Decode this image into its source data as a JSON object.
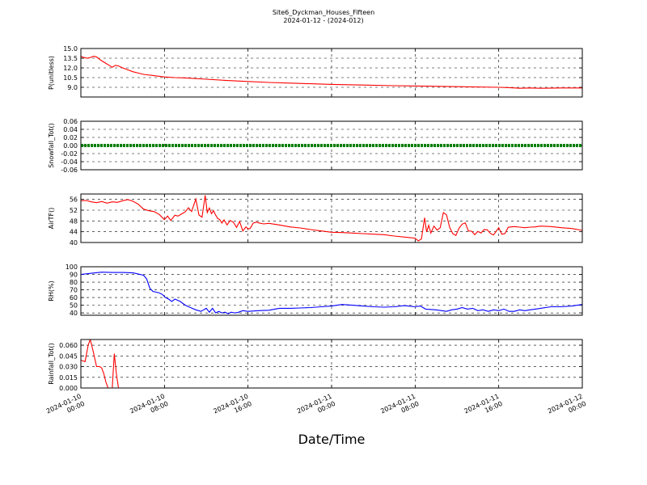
{
  "figure": {
    "title": "Site6_Dyckman_Houses_Fifteen",
    "subtitle": "2024-01-12 - (2024-012)",
    "xlabel": "Date/Time"
  },
  "chart_data": {
    "type": "line",
    "shared_x": {
      "range": [
        "2024-01-10 00:00",
        "2024-01-12 00:00"
      ],
      "tick_labels": [
        "2024-01-10\n00:00",
        "2024-01-10\n08:00",
        "2024-01-10\n16:00",
        "2024-01-11\n00:00",
        "2024-01-11\n08:00",
        "2024-01-11\n16:00",
        "2024-01-12\n00:00"
      ],
      "tick_hours": [
        0,
        8,
        16,
        24,
        32,
        40,
        48
      ]
    },
    "panels": [
      {
        "ylabel": "P(unitless)",
        "ylim": [
          7.5,
          15.0
        ],
        "yticks": [
          9.0,
          10.5,
          12.0,
          13.5,
          15.0
        ],
        "color": "#ff0000",
        "grid": true,
        "series": {
          "x_hours": [
            0,
            0.3,
            0.6,
            0.9,
            1.2,
            1.5,
            1.8,
            2.1,
            2.4,
            2.7,
            3.0,
            3.3,
            3.6,
            4.0,
            4.5,
            5.0,
            5.5,
            6,
            7,
            8,
            9,
            10,
            12,
            14,
            16,
            18,
            20,
            22,
            24,
            27,
            30,
            33,
            36,
            40,
            41,
            42,
            43,
            44,
            46,
            48
          ],
          "y": [
            13.8,
            13.6,
            13.5,
            13.6,
            13.8,
            13.7,
            13.3,
            13.0,
            12.7,
            12.4,
            12.1,
            12.4,
            12.3,
            12.0,
            11.7,
            11.4,
            11.2,
            11.0,
            10.8,
            10.6,
            10.5,
            10.45,
            10.25,
            10.05,
            9.9,
            9.75,
            9.65,
            9.55,
            9.45,
            9.35,
            9.25,
            9.18,
            9.1,
            9.0,
            8.95,
            8.85,
            8.9,
            8.85,
            8.9,
            8.9
          ]
        }
      },
      {
        "ylabel": "Snowfall_Tot()",
        "ylim": [
          -0.06,
          0.06
        ],
        "yticks": [
          -0.06,
          -0.04,
          -0.02,
          0.0,
          0.02,
          0.04,
          0.06
        ],
        "color": "#008000",
        "grid": true,
        "series": {
          "x_hours": [
            0,
            48
          ],
          "y": [
            0,
            0
          ]
        }
      },
      {
        "ylabel": "AirTF()",
        "ylim": [
          40,
          58
        ],
        "yticks": [
          40,
          44,
          48,
          52,
          56
        ],
        "color": "#ff0000",
        "grid": true,
        "series": {
          "x_hours": [
            0,
            0.5,
            1.0,
            1.5,
            2.0,
            2.5,
            3.0,
            3.5,
            4.0,
            4.5,
            5.0,
            5.5,
            6.0,
            6.5,
            7.0,
            7.5,
            8.0,
            8.3,
            8.6,
            9.0,
            9.3,
            9.6,
            10.0,
            10.3,
            10.6,
            11.0,
            11.3,
            11.6,
            11.9,
            12.1,
            12.3,
            12.5,
            12.7,
            12.9,
            13.1,
            13.3,
            13.5,
            13.7,
            14.0,
            14.3,
            14.6,
            14.9,
            15.2,
            15.5,
            15.8,
            16.0,
            16.2,
            16.5,
            16.8,
            17.0,
            17.5,
            18.0,
            19.0,
            20,
            21,
            22,
            23,
            24,
            25,
            26,
            27,
            28,
            29,
            30,
            31,
            32,
            32.3,
            32.6,
            32.9,
            33.1,
            33.3,
            33.5,
            33.8,
            34.1,
            34.4,
            34.7,
            35.0,
            35.3,
            35.6,
            35.9,
            36.2,
            36.5,
            36.8,
            37.1,
            37.4,
            37.7,
            38.0,
            38.3,
            38.6,
            38.9,
            39.2,
            39.5,
            40.0,
            40.3,
            40.6,
            40.9,
            41.2,
            41.5,
            42,
            42.5,
            43,
            43.5,
            44,
            45,
            46,
            47,
            48
          ],
          "y": [
            55.5,
            55.6,
            55.1,
            54.8,
            55.2,
            54.6,
            55.1,
            54.9,
            55.5,
            55.9,
            55.3,
            54.2,
            52.4,
            51.8,
            51.5,
            50.4,
            48.5,
            49.8,
            48.2,
            50.1,
            49.8,
            50.5,
            51.4,
            52.9,
            51.5,
            56.1,
            50.2,
            49.4,
            57.5,
            51.1,
            52.8,
            50.7,
            51.8,
            50.2,
            48.9,
            48.5,
            47.2,
            48.4,
            46.5,
            48.2,
            47.5,
            45.6,
            47.8,
            44.3,
            45.8,
            45.1,
            45.2,
            47.2,
            47.6,
            47.3,
            46.9,
            47.1,
            46.5,
            45.8,
            45.4,
            44.8,
            44.3,
            43.8,
            43.7,
            43.5,
            43.3,
            43.1,
            42.9,
            42.4,
            42.0,
            41.6,
            40.6,
            41.3,
            49.2,
            43.9,
            46.4,
            43.5,
            46.1,
            44.6,
            45.5,
            51.1,
            50.3,
            45.6,
            43.3,
            42.6,
            45.3,
            46.8,
            47.3,
            44.3,
            44.2,
            42.9,
            44.1,
            43.5,
            44.8,
            44.7,
            43.4,
            42.8,
            45.5,
            43.1,
            43.3,
            45.6,
            45.8,
            45.9,
            45.7,
            45.5,
            45.7,
            45.8,
            46.1,
            45.9,
            45.5,
            45.2,
            44.5
          ]
        }
      },
      {
        "ylabel": "RH(%)",
        "ylim": [
          37,
          100
        ],
        "yticks": [
          40,
          50,
          60,
          70,
          80,
          90,
          100
        ],
        "color": "#0000ff",
        "grid": true,
        "series": {
          "x_hours": [
            0,
            1,
            2,
            3,
            4,
            5,
            6,
            6.3,
            6.6,
            6.9,
            7.2,
            7.5,
            7.8,
            8.1,
            8.4,
            8.7,
            9.0,
            9.5,
            10,
            10.5,
            11,
            11.5,
            12.0,
            12.3,
            12.6,
            12.9,
            13.2,
            13.5,
            13.8,
            14.1,
            14.4,
            14.7,
            15.0,
            15.5,
            16,
            17,
            18,
            19,
            20,
            21,
            22,
            23,
            24,
            25,
            26,
            27,
            28,
            29,
            30,
            31,
            32,
            32.5,
            33,
            34,
            35,
            35.5,
            36,
            36.5,
            37,
            37.5,
            38,
            38.5,
            39,
            39.5,
            40,
            40.5,
            41,
            41.5,
            42,
            42.5,
            43,
            43.5,
            44,
            45,
            46,
            47,
            48
          ],
          "y": [
            90,
            91.5,
            93,
            92.5,
            92.5,
            92,
            89,
            84,
            72,
            68,
            67,
            66,
            64,
            60,
            58,
            55,
            58,
            55,
            50,
            47,
            44,
            42,
            46,
            41,
            46,
            40,
            42,
            40,
            41,
            39,
            41,
            40,
            40.5,
            43,
            42,
            43,
            43.5,
            46,
            46,
            46.5,
            47,
            48,
            49,
            51,
            50,
            49,
            48,
            47.5,
            48,
            49.5,
            48,
            49,
            45,
            44,
            42,
            44,
            45,
            47,
            45,
            46,
            43,
            44,
            42,
            44,
            43,
            45,
            42,
            42,
            44,
            43,
            44,
            45,
            46,
            48,
            48,
            49,
            51
          ]
        }
      },
      {
        "ylabel": "Rainfall_Tot()",
        "ylim": [
          0,
          0.068
        ],
        "yticks": [
          0.0,
          0.015,
          0.03,
          0.045,
          0.06
        ],
        "color": "#ff0000",
        "grid": true,
        "series": {
          "x_hours": [
            0,
            0.4,
            0.7,
            0.9,
            1.2,
            1.5,
            1.8,
            2.0,
            2.2,
            2.4,
            2.6,
            2.8,
            3.0,
            3.2,
            3.4,
            3.6,
            4,
            8,
            16,
            24,
            32,
            40,
            48
          ],
          "y": [
            0.039,
            0.037,
            0.06,
            0.068,
            0.05,
            0.03,
            0.03,
            0.028,
            0.02,
            0.008,
            0.0,
            0.0,
            0.0,
            0.048,
            0.02,
            0.0,
            0.0,
            0.0,
            0.0,
            0.0,
            0.0,
            0.0,
            0.0
          ]
        }
      }
    ]
  }
}
